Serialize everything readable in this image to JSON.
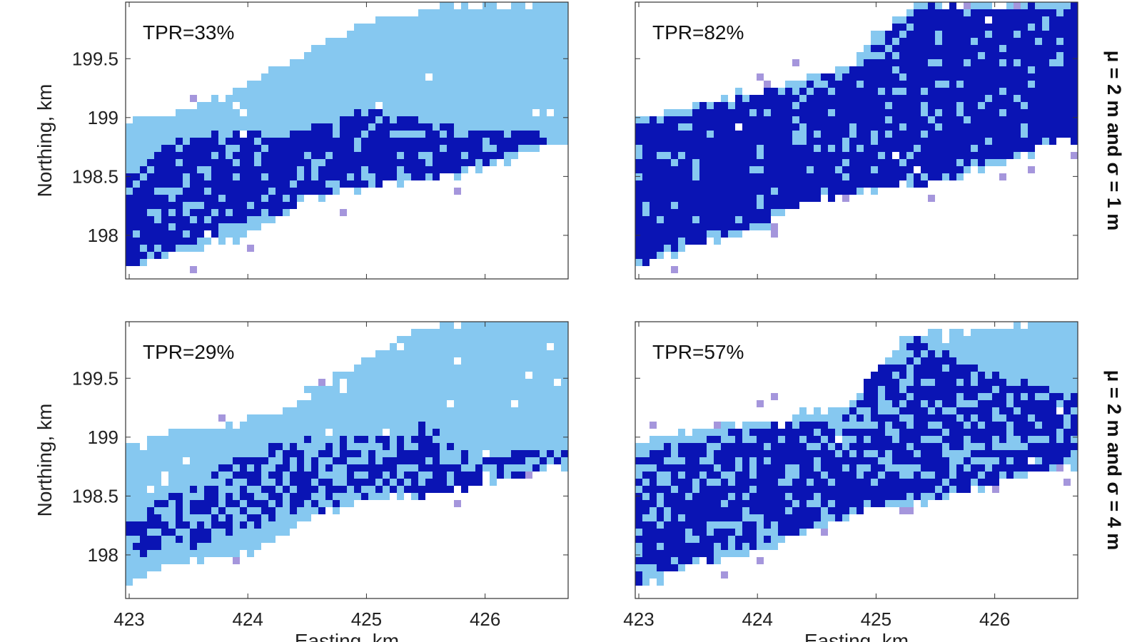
{
  "figure": {
    "row_labels": [
      "μ = 2 m and σ = 1 m",
      "μ = 2 m and σ = 4 m"
    ],
    "ylabel": "Northing, km",
    "xlabel": "Easting, km"
  },
  "colors": {
    "background": "#ffffff",
    "predicted_extent": "#86c8f0",
    "true_positive": "#0a14b4",
    "false_positive": "#a596dc",
    "axes": "#333333"
  },
  "chart_data": [
    {
      "type": "heatmap",
      "annotation": "TPR=33%",
      "tpr_percent": 33,
      "xlim": [
        422.97,
        426.7
      ],
      "ylim": [
        197.63,
        199.98
      ],
      "xticks": [
        "423",
        "424",
        "425",
        "426"
      ],
      "yticks": [
        "198",
        "198.5",
        "199",
        "199.5"
      ],
      "xlabel": "",
      "ylabel": "Northing, km",
      "extent": {
        "bottom": [
          [
            422.97,
            197.7
          ],
          [
            423.4,
            197.85
          ],
          [
            424.0,
            198.0
          ],
          [
            424.5,
            198.3
          ],
          [
            425.0,
            198.4
          ],
          [
            425.5,
            198.45
          ],
          [
            426.0,
            198.55
          ],
          [
            426.6,
            198.8
          ],
          [
            426.7,
            198.8
          ]
        ],
        "top": [
          [
            422.97,
            198.95
          ],
          [
            423.4,
            199.05
          ],
          [
            423.8,
            199.2
          ],
          [
            424.3,
            199.45
          ],
          [
            424.8,
            199.7
          ],
          [
            425.2,
            199.85
          ],
          [
            425.6,
            199.96
          ],
          [
            426.7,
            199.98
          ]
        ]
      },
      "tp_band": {
        "bottom": [
          [
            422.97,
            197.7
          ],
          [
            423.5,
            197.95
          ],
          [
            424.2,
            198.2
          ],
          [
            424.8,
            198.38
          ],
          [
            425.4,
            198.45
          ],
          [
            426.0,
            198.6
          ],
          [
            426.6,
            198.85
          ]
        ],
        "top": [
          [
            422.97,
            198.55
          ],
          [
            423.4,
            198.8
          ],
          [
            424.0,
            198.85
          ],
          [
            424.5,
            198.9
          ],
          [
            425.0,
            199.05
          ],
          [
            425.3,
            199.0
          ],
          [
            425.8,
            198.9
          ],
          [
            426.6,
            198.85
          ]
        ]
      },
      "tp_density": 0.82,
      "fp_density": 0.02,
      "seed": 11
    },
    {
      "type": "heatmap",
      "annotation": "TPR=82%",
      "tpr_percent": 82,
      "xlim": [
        422.97,
        426.7
      ],
      "ylim": [
        197.63,
        199.98
      ],
      "xticks": [
        "423",
        "424",
        "425",
        "426"
      ],
      "yticks": [
        "198",
        "198.5",
        "199",
        "199.5"
      ],
      "xlabel": "",
      "ylabel": "",
      "extent": {
        "bottom": [
          [
            422.97,
            197.7
          ],
          [
            423.4,
            197.9
          ],
          [
            424.0,
            198.05
          ],
          [
            424.5,
            198.3
          ],
          [
            425.0,
            198.38
          ],
          [
            425.5,
            198.45
          ],
          [
            426.0,
            198.6
          ],
          [
            426.6,
            198.8
          ],
          [
            426.7,
            198.8
          ]
        ],
        "top": [
          [
            422.97,
            199.0
          ],
          [
            423.4,
            199.1
          ],
          [
            423.8,
            199.2
          ],
          [
            424.3,
            199.3
          ],
          [
            424.8,
            199.45
          ],
          [
            425.0,
            199.7
          ],
          [
            425.3,
            199.95
          ],
          [
            426.7,
            199.98
          ]
        ]
      },
      "tp_band": {
        "bottom": [
          [
            422.97,
            197.75
          ],
          [
            423.5,
            197.95
          ],
          [
            424.2,
            198.15
          ],
          [
            424.8,
            198.35
          ],
          [
            425.4,
            198.45
          ],
          [
            426.0,
            198.6
          ],
          [
            426.6,
            198.8
          ]
        ],
        "top": [
          [
            422.97,
            198.95
          ],
          [
            423.4,
            199.05
          ],
          [
            423.8,
            199.15
          ],
          [
            424.3,
            199.25
          ],
          [
            424.8,
            199.4
          ],
          [
            425.1,
            199.7
          ],
          [
            425.4,
            199.95
          ],
          [
            426.6,
            199.95
          ]
        ]
      },
      "tp_density": 0.88,
      "fp_density": 0.03,
      "seed": 23
    },
    {
      "type": "heatmap",
      "annotation": "TPR=29%",
      "tpr_percent": 29,
      "xlim": [
        422.97,
        426.7
      ],
      "ylim": [
        197.63,
        199.98
      ],
      "xticks": [
        "423",
        "424",
        "425",
        "426"
      ],
      "yticks": [
        "198",
        "198.5",
        "199",
        "199.5"
      ],
      "xlabel": "Easting, km",
      "ylabel": "Northing, km",
      "extent": {
        "bottom": [
          [
            422.97,
            197.75
          ],
          [
            423.4,
            197.9
          ],
          [
            424.0,
            198.0
          ],
          [
            424.5,
            198.3
          ],
          [
            425.0,
            198.45
          ],
          [
            425.5,
            198.5
          ],
          [
            426.0,
            198.6
          ],
          [
            426.6,
            198.75
          ],
          [
            426.7,
            198.75
          ]
        ],
        "top": [
          [
            422.97,
            198.9
          ],
          [
            423.4,
            199.05
          ],
          [
            423.8,
            199.1
          ],
          [
            424.3,
            199.2
          ],
          [
            424.6,
            199.45
          ],
          [
            424.9,
            199.6
          ],
          [
            425.3,
            199.88
          ],
          [
            425.7,
            199.96
          ],
          [
            426.7,
            199.98
          ]
        ]
      },
      "tp_band": {
        "bottom": [
          [
            422.97,
            198.0
          ],
          [
            423.5,
            198.05
          ],
          [
            424.2,
            198.3
          ],
          [
            424.8,
            198.45
          ],
          [
            425.4,
            198.5
          ],
          [
            426.0,
            198.55
          ],
          [
            426.6,
            198.75
          ]
        ],
        "top": [
          [
            422.97,
            198.4
          ],
          [
            423.4,
            198.5
          ],
          [
            424.0,
            198.9
          ],
          [
            424.5,
            198.95
          ],
          [
            425.0,
            199.0
          ],
          [
            425.5,
            199.1
          ],
          [
            425.9,
            198.9
          ],
          [
            426.6,
            198.85
          ]
        ]
      },
      "tp_density": 0.6,
      "fp_density": 0.03,
      "seed": 37
    },
    {
      "type": "heatmap",
      "annotation": "TPR=57%",
      "tpr_percent": 57,
      "xlim": [
        422.97,
        426.7
      ],
      "ylim": [
        197.63,
        199.98
      ],
      "xticks": [
        "423",
        "424",
        "425",
        "426"
      ],
      "yticks": [
        "198",
        "198.5",
        "199",
        "199.5"
      ],
      "xlabel": "Easting, km",
      "ylabel": "",
      "extent": {
        "bottom": [
          [
            422.97,
            197.7
          ],
          [
            423.4,
            197.9
          ],
          [
            424.0,
            198.0
          ],
          [
            424.5,
            198.25
          ],
          [
            425.0,
            198.4
          ],
          [
            425.5,
            198.45
          ],
          [
            426.0,
            198.6
          ],
          [
            426.6,
            198.75
          ],
          [
            426.7,
            198.75
          ]
        ],
        "top": [
          [
            422.97,
            198.95
          ],
          [
            423.4,
            199.05
          ],
          [
            423.8,
            199.1
          ],
          [
            424.3,
            199.2
          ],
          [
            424.8,
            199.3
          ],
          [
            425.0,
            199.6
          ],
          [
            425.3,
            199.88
          ],
          [
            426.7,
            199.98
          ]
        ]
      },
      "tp_band": {
        "bottom": [
          [
            422.97,
            197.75
          ],
          [
            423.5,
            197.95
          ],
          [
            424.2,
            198.15
          ],
          [
            424.8,
            198.35
          ],
          [
            425.4,
            198.5
          ],
          [
            426.0,
            198.6
          ],
          [
            426.6,
            198.8
          ]
        ],
        "top": [
          [
            422.97,
            198.85
          ],
          [
            423.4,
            198.95
          ],
          [
            423.8,
            199.05
          ],
          [
            424.3,
            199.1
          ],
          [
            424.8,
            199.2
          ],
          [
            425.0,
            199.6
          ],
          [
            425.4,
            199.85
          ],
          [
            425.8,
            199.6
          ],
          [
            426.6,
            199.4
          ]
        ]
      },
      "tp_density": 0.72,
      "fp_density": 0.05,
      "seed": 53
    }
  ]
}
